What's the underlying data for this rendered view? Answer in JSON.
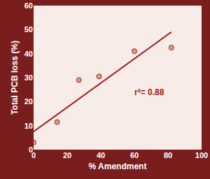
{
  "chart_data": {
    "type": "scatter",
    "xlabel": "% Amendment",
    "ylabel": "Total PCB loss (%)",
    "xlim": [
      0,
      100
    ],
    "xticks": [
      0,
      20,
      40,
      60,
      80,
      100
    ],
    "ylim": [
      0,
      60
    ],
    "yticks": [
      0,
      10,
      20,
      30,
      40,
      50,
      60
    ],
    "grid": false,
    "series": [
      {
        "type": "scatter",
        "marker": "circle",
        "color": "#e39a7c",
        "x": [
          0,
          14,
          27,
          39,
          60,
          82
        ],
        "values": [
          3,
          11.5,
          29,
          30.5,
          41,
          42.5
        ]
      },
      {
        "type": "line",
        "line_style": "solid",
        "color": "#a01818",
        "x": [
          0,
          82
        ],
        "values": [
          7.5,
          49
        ]
      }
    ],
    "annotations": [
      {
        "text": "r²= 0.88",
        "x": 69,
        "y": 24
      }
    ]
  }
}
